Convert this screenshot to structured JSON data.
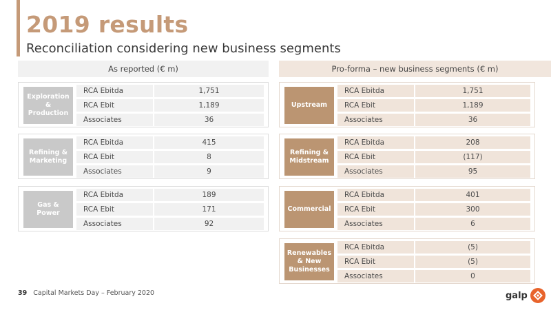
{
  "title": "2019 results",
  "subtitle": "Reconciliation considering new business segments",
  "left_header": "As reported (€ m)",
  "right_header": "Pro-forma – new business segments (€ m)",
  "left_groups": [
    {
      "segment": "Exploration & Production",
      "rows": [
        {
          "label": "RCA Ebitda",
          "value": "1,751"
        },
        {
          "label": "RCA Ebit",
          "value": "1,189"
        },
        {
          "label": "Associates",
          "value": "36"
        }
      ]
    },
    {
      "segment": "Refining & Marketing",
      "rows": [
        {
          "label": "RCA Ebitda",
          "value": "415"
        },
        {
          "label": "RCA Ebit",
          "value": "8"
        },
        {
          "label": "Associates",
          "value": "9"
        }
      ]
    },
    {
      "segment": "Gas & Power",
      "rows": [
        {
          "label": "RCA Ebitda",
          "value": "189"
        },
        {
          "label": "RCA Ebit",
          "value": "171"
        },
        {
          "label": "Associates",
          "value": "92"
        }
      ]
    }
  ],
  "right_groups": [
    {
      "segment": "Upstream",
      "rows": [
        {
          "label": "RCA Ebitda",
          "value": "1,751"
        },
        {
          "label": "RCA Ebit",
          "value": "1,189"
        },
        {
          "label": "Associates",
          "value": "36"
        }
      ]
    },
    {
      "segment": "Refining & Midstream",
      "rows": [
        {
          "label": "RCA Ebitda",
          "value": "208"
        },
        {
          "label": "RCA Ebit",
          "value": "(117)"
        },
        {
          "label": "Associates",
          "value": "95"
        }
      ]
    },
    {
      "segment": "Commercial",
      "rows": [
        {
          "label": "RCA Ebitda",
          "value": "401"
        },
        {
          "label": "RCA Ebit",
          "value": "300"
        },
        {
          "label": "Associates",
          "value": "6"
        }
      ]
    },
    {
      "segment": "Renewables & New Businesses",
      "rows": [
        {
          "label": "RCA Ebitda",
          "value": "(5)"
        },
        {
          "label": "RCA Ebit",
          "value": "(5)"
        },
        {
          "label": "Associates",
          "value": "0"
        }
      ]
    }
  ],
  "footer": {
    "page": "39",
    "text": "Capital Markets Day – February 2020"
  },
  "logo": {
    "word": "galp",
    "icon": "galp-logo-icon"
  },
  "colors": {
    "accent": "#c59a78",
    "left_segment": "#c9c9c9",
    "right_segment": "#bb9572",
    "logo": "#e8632b"
  }
}
